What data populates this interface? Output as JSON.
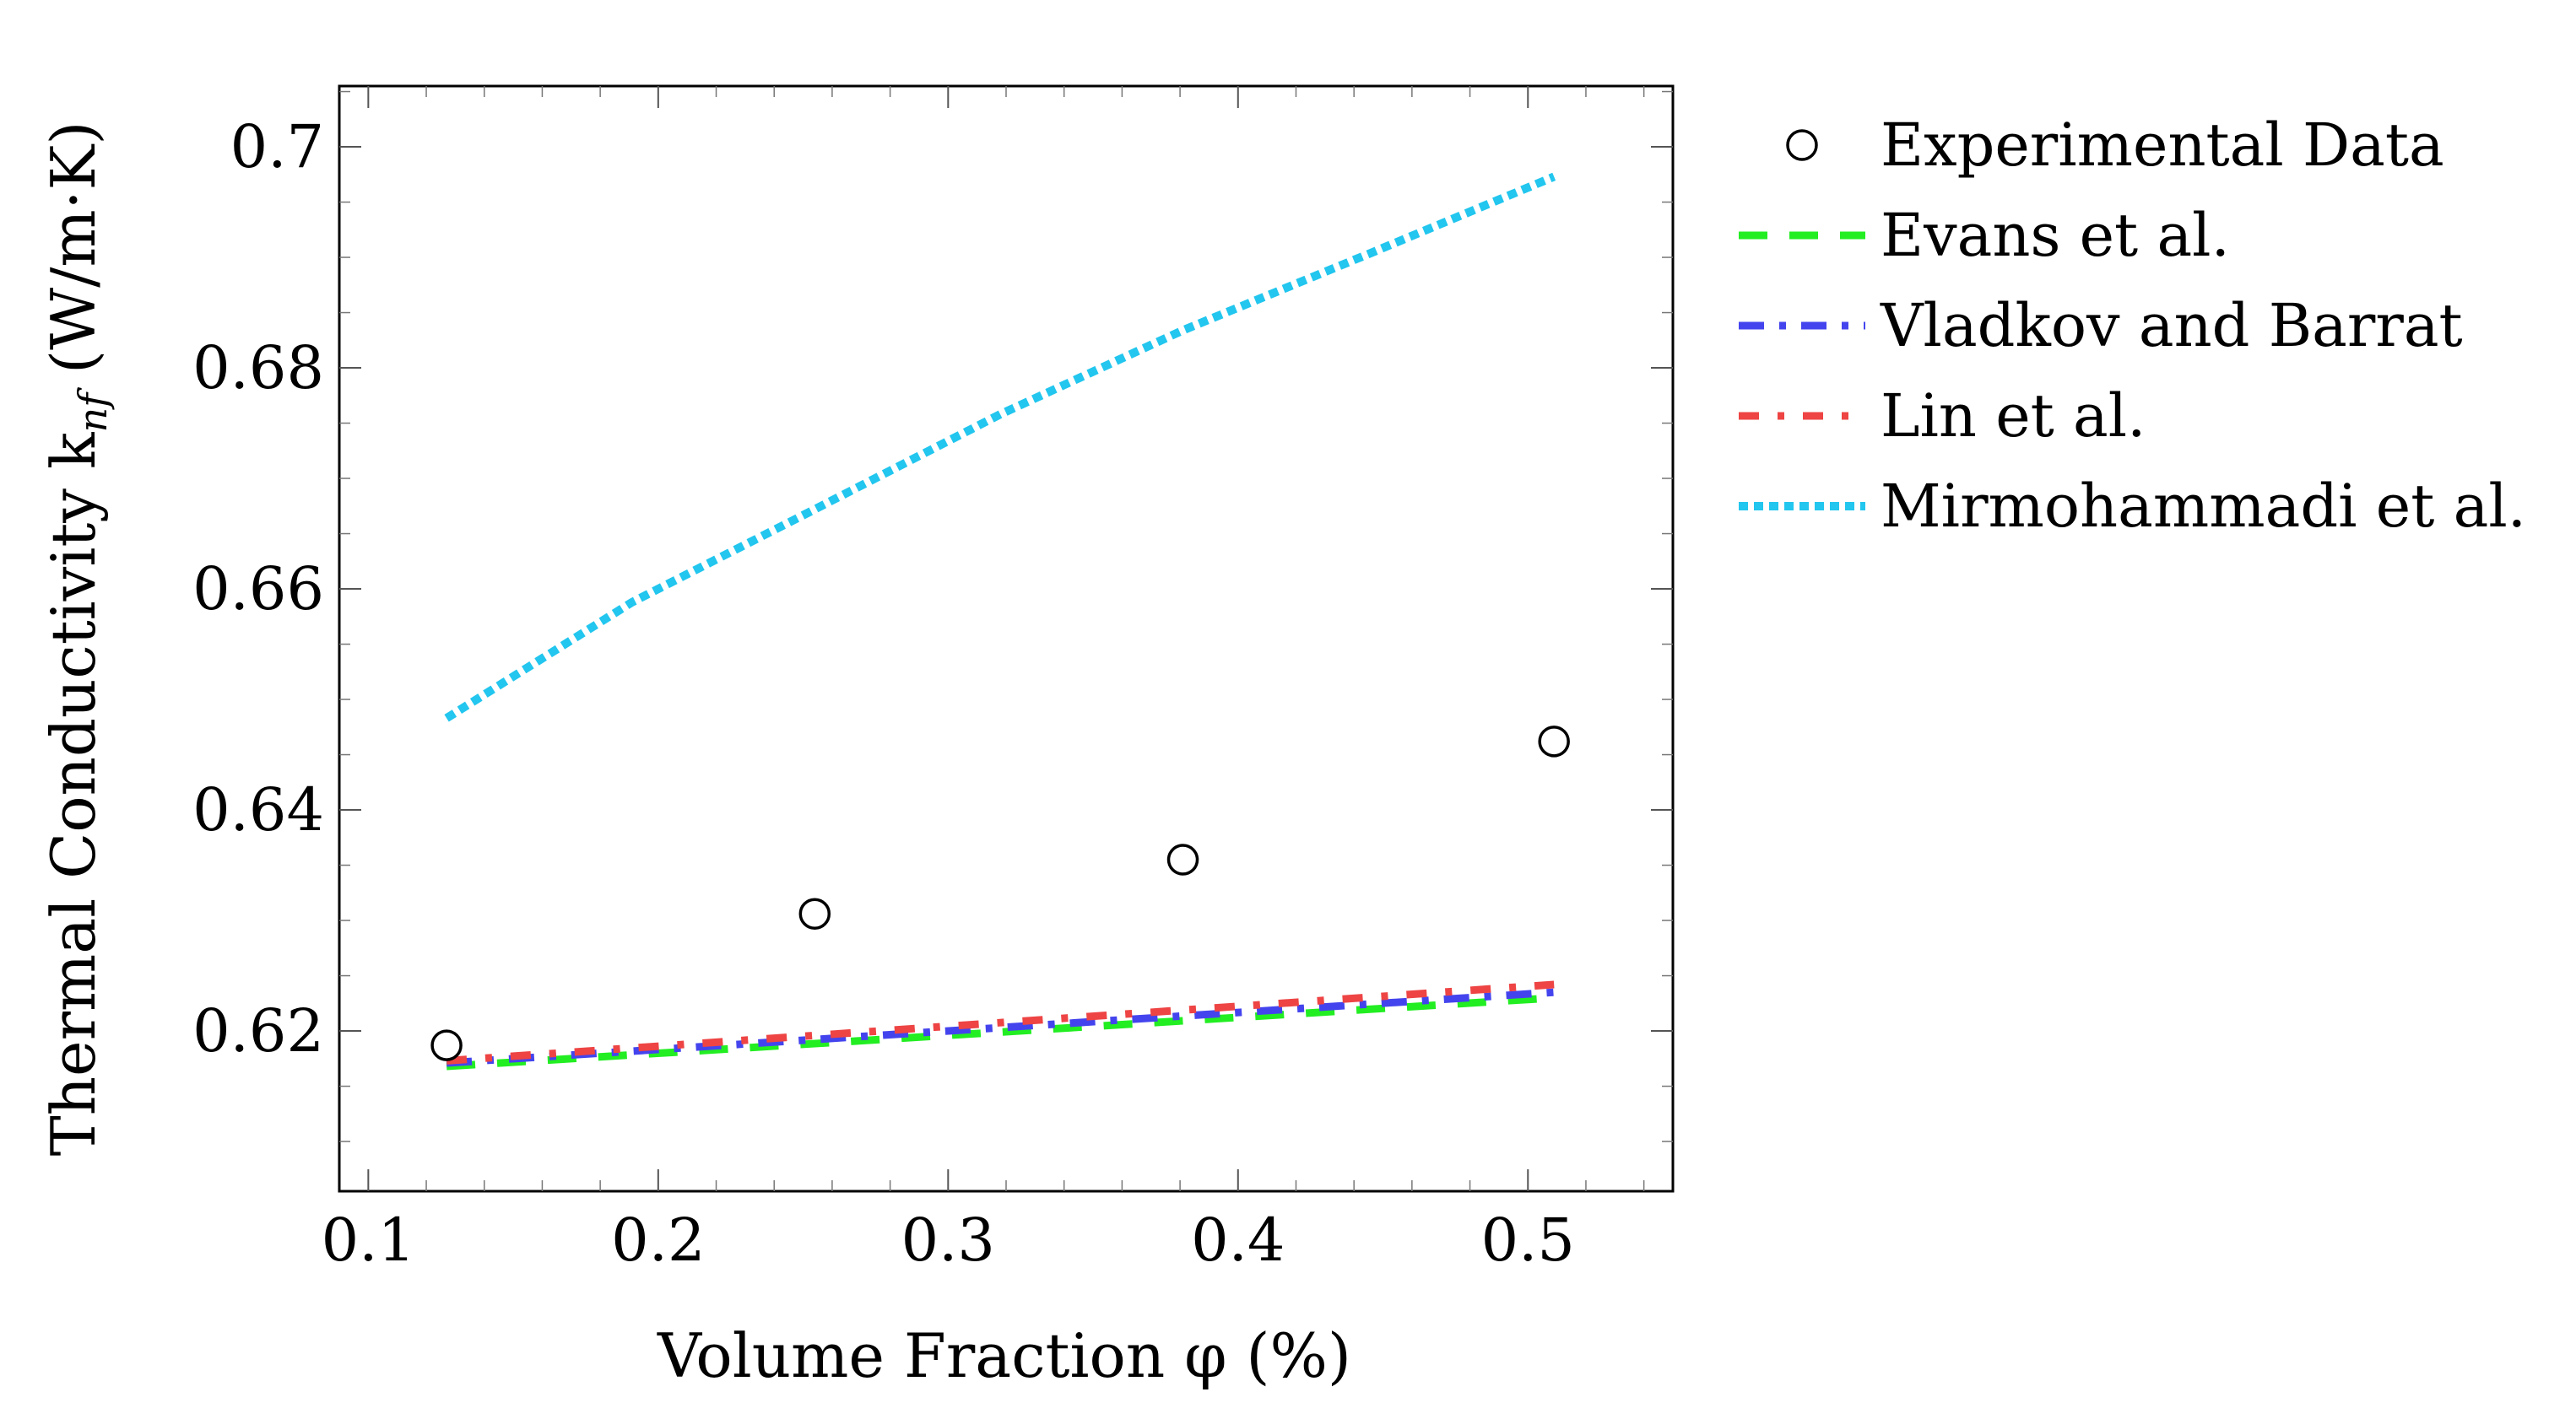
{
  "chart_data": {
    "type": "line",
    "title": "",
    "xlabel": "Volume Fraction φ (%)",
    "ylabel": "Thermal Conductivity k",
    "ylabel_sub": "nf",
    "ylabel_units": "(W/m·K)",
    "xlim": [
      0.09,
      0.55
    ],
    "ylim": [
      0.6055,
      0.7055
    ],
    "x_ticks": [
      0.1,
      0.2,
      0.3,
      0.4,
      0.5
    ],
    "x_tick_labels": [
      "0.1",
      "0.2",
      "0.3",
      "0.4",
      "0.5"
    ],
    "y_ticks": [
      0.62,
      0.64,
      0.66,
      0.68,
      0.7
    ],
    "y_tick_labels": [
      "0.62",
      "0.64",
      "0.66",
      "0.68",
      "0.7"
    ],
    "legend_position": "outside-right",
    "series": [
      {
        "name": "Experimental Data",
        "style": "markers",
        "color": "#000000",
        "x": [
          0.127,
          0.254,
          0.381,
          0.509
        ],
        "y": [
          0.6187,
          0.6306,
          0.6355,
          0.6462
        ]
      },
      {
        "name": "Evans et al.",
        "style": "dashed",
        "color": "#22ee22",
        "x": [
          0.127,
          0.509
        ],
        "y": [
          0.6168,
          0.623
        ]
      },
      {
        "name": "Vladkov and Barrat",
        "style": "dashdot",
        "color": "#4444ee",
        "x": [
          0.127,
          0.509
        ],
        "y": [
          0.6171,
          0.6235
        ]
      },
      {
        "name": "Lin et al.",
        "style": "dashdotted",
        "color": "#ee4444",
        "x": [
          0.127,
          0.509
        ],
        "y": [
          0.6173,
          0.6242
        ]
      },
      {
        "name": "Mirmohammadi et al.",
        "style": "dotted",
        "color": "#22c6ee",
        "x": [
          0.127,
          0.191,
          0.254,
          0.318,
          0.381,
          0.445,
          0.509
        ],
        "y": [
          0.6483,
          0.6588,
          0.6672,
          0.6758,
          0.6834,
          0.6903,
          0.6973
        ]
      }
    ]
  }
}
